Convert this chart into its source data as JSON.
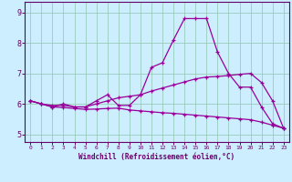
{
  "xlabel": "Windchill (Refroidissement éolien,°C)",
  "background_color": "#cceeff",
  "line_color": "#990099",
  "grid_color": "#99ccbb",
  "axis_color": "#660066",
  "xlim": [
    -0.5,
    23.5
  ],
  "ylim": [
    4.75,
    9.35
  ],
  "yticks": [
    5,
    6,
    7,
    8,
    9
  ],
  "xticks": [
    0,
    1,
    2,
    3,
    4,
    5,
    6,
    7,
    8,
    9,
    10,
    11,
    12,
    13,
    14,
    15,
    16,
    17,
    18,
    19,
    20,
    21,
    22,
    23
  ],
  "lines": [
    {
      "x": [
        0,
        1,
        2,
        3,
        4,
        5,
        6,
        7,
        8,
        9,
        10,
        11,
        12,
        13,
        14,
        15,
        16,
        17,
        18,
        19,
        20,
        21,
        22,
        23
      ],
      "y": [
        6.1,
        6.0,
        5.9,
        6.0,
        5.9,
        5.9,
        6.1,
        6.3,
        5.95,
        5.95,
        6.3,
        7.2,
        7.35,
        8.1,
        8.8,
        8.8,
        8.8,
        7.7,
        7.0,
        6.55,
        6.55,
        5.9,
        5.35,
        5.2
      ]
    },
    {
      "x": [
        0,
        1,
        2,
        3,
        4,
        5,
        6,
        7,
        8,
        9,
        10,
        11,
        12,
        13,
        14,
        15,
        16,
        17,
        18,
        19,
        20,
        21,
        22,
        23
      ],
      "y": [
        6.1,
        6.0,
        5.95,
        5.95,
        5.9,
        5.9,
        6.0,
        6.1,
        6.2,
        6.25,
        6.3,
        6.42,
        6.52,
        6.62,
        6.72,
        6.82,
        6.88,
        6.9,
        6.93,
        6.97,
        7.0,
        6.7,
        6.1,
        5.2
      ]
    },
    {
      "x": [
        0,
        1,
        2,
        3,
        4,
        5,
        6,
        7,
        8,
        9,
        10,
        11,
        12,
        13,
        14,
        15,
        16,
        17,
        18,
        19,
        20,
        21,
        22,
        23
      ],
      "y": [
        6.1,
        6.0,
        5.9,
        5.88,
        5.85,
        5.82,
        5.83,
        5.85,
        5.86,
        5.8,
        5.77,
        5.74,
        5.71,
        5.69,
        5.66,
        5.63,
        5.6,
        5.57,
        5.54,
        5.51,
        5.48,
        5.4,
        5.3,
        5.2
      ]
    }
  ]
}
